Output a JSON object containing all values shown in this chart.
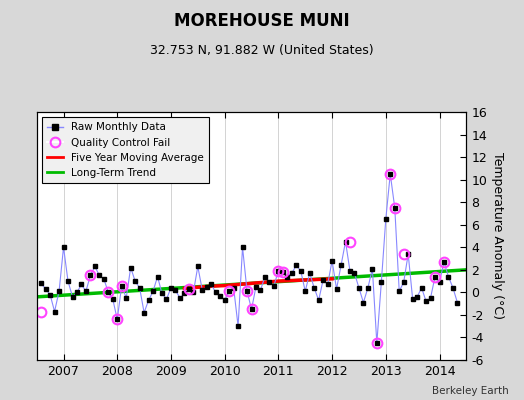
{
  "title": "MOREHOUSE MUNI",
  "subtitle": "32.753 N, 91.882 W (United States)",
  "ylabel": "Temperature Anomaly (°C)",
  "credit": "Berkeley Earth",
  "ylim": [
    -6,
    16
  ],
  "yticks": [
    -6,
    -4,
    -2,
    0,
    2,
    4,
    6,
    8,
    10,
    12,
    14,
    16
  ],
  "xlim": [
    2006.5,
    2014.5
  ],
  "xticks": [
    2007,
    2008,
    2009,
    2010,
    2011,
    2012,
    2013,
    2014
  ],
  "fig_bg_color": "#d8d8d8",
  "plot_bg": "#ffffff",
  "raw_x": [
    2006.583,
    2006.667,
    2006.75,
    2006.833,
    2006.917,
    2007.0,
    2007.083,
    2007.167,
    2007.25,
    2007.333,
    2007.417,
    2007.5,
    2007.583,
    2007.667,
    2007.75,
    2007.833,
    2007.917,
    2008.0,
    2008.083,
    2008.167,
    2008.25,
    2008.333,
    2008.417,
    2008.5,
    2008.583,
    2008.667,
    2008.75,
    2008.833,
    2008.917,
    2009.0,
    2009.083,
    2009.167,
    2009.25,
    2009.333,
    2009.417,
    2009.5,
    2009.583,
    2009.667,
    2009.75,
    2009.833,
    2009.917,
    2010.0,
    2010.083,
    2010.167,
    2010.25,
    2010.333,
    2010.417,
    2010.5,
    2010.583,
    2010.667,
    2010.75,
    2010.833,
    2010.917,
    2011.0,
    2011.083,
    2011.167,
    2011.25,
    2011.333,
    2011.417,
    2011.5,
    2011.583,
    2011.667,
    2011.75,
    2011.833,
    2011.917,
    2012.0,
    2012.083,
    2012.167,
    2012.25,
    2012.333,
    2012.417,
    2012.5,
    2012.583,
    2012.667,
    2012.75,
    2012.833,
    2012.917,
    2013.0,
    2013.083,
    2013.167,
    2013.25,
    2013.333,
    2013.417,
    2013.5,
    2013.583,
    2013.667,
    2013.75,
    2013.833,
    2013.917,
    2014.0,
    2014.083,
    2014.167,
    2014.25,
    2014.333
  ],
  "raw_y": [
    0.8,
    0.3,
    -0.2,
    -1.7,
    0.1,
    4.0,
    1.0,
    -0.4,
    0.0,
    0.7,
    0.1,
    1.5,
    2.3,
    1.5,
    1.2,
    0.0,
    -0.6,
    -2.4,
    0.6,
    -0.5,
    2.2,
    1.0,
    0.4,
    -1.8,
    -0.7,
    0.1,
    1.4,
    -0.1,
    -0.6,
    0.4,
    0.2,
    -0.5,
    -0.1,
    0.3,
    0.0,
    2.3,
    0.2,
    0.5,
    0.7,
    0.0,
    -0.3,
    -0.7,
    0.1,
    0.4,
    -3.0,
    4.0,
    0.1,
    -1.5,
    0.5,
    0.2,
    1.4,
    0.9,
    0.6,
    1.9,
    1.8,
    1.4,
    1.7,
    2.4,
    1.9,
    0.1,
    1.7,
    0.4,
    -0.7,
    1.1,
    0.7,
    2.8,
    0.3,
    2.4,
    4.5,
    1.9,
    1.7,
    0.4,
    -0.9,
    0.4,
    2.1,
    -4.5,
    0.9,
    6.5,
    10.5,
    7.5,
    0.1,
    0.9,
    3.4,
    -0.6,
    -0.4,
    0.4,
    -0.8,
    -0.5,
    1.4,
    0.9,
    2.7,
    1.4,
    0.4,
    -0.9
  ],
  "qc_fail_x": [
    2006.583,
    2007.5,
    2007.833,
    2008.0,
    2008.083,
    2009.333,
    2010.083,
    2010.417,
    2010.5,
    2011.0,
    2011.083,
    2012.333,
    2012.833,
    2013.083,
    2013.167,
    2013.333,
    2013.917,
    2014.083
  ],
  "qc_fail_y": [
    -1.7,
    1.5,
    0.0,
    -2.4,
    0.6,
    0.3,
    0.1,
    0.1,
    -1.5,
    1.9,
    1.8,
    4.5,
    -4.5,
    10.5,
    7.5,
    3.4,
    1.4,
    2.7
  ],
  "moving_avg_x": [
    2009.25,
    2009.5,
    2009.75,
    2010.0,
    2010.25,
    2010.5,
    2010.75,
    2011.0,
    2011.25,
    2011.5,
    2011.75,
    2012.0
  ],
  "moving_avg_y": [
    0.35,
    0.45,
    0.55,
    0.6,
    0.7,
    0.8,
    0.9,
    1.0,
    1.05,
    1.1,
    1.15,
    1.2
  ],
  "trend_x": [
    2006.5,
    2014.5
  ],
  "trend_y": [
    -0.4,
    2.0
  ],
  "raw_line_color": "#8888ff",
  "raw_marker_color": "#000000",
  "qc_color": "#ff44ff",
  "moving_avg_color": "#ff0000",
  "trend_color": "#00bb00",
  "grid_color": "#cccccc",
  "title_fontsize": 12,
  "subtitle_fontsize": 9,
  "tick_fontsize": 9,
  "ylabel_fontsize": 9
}
